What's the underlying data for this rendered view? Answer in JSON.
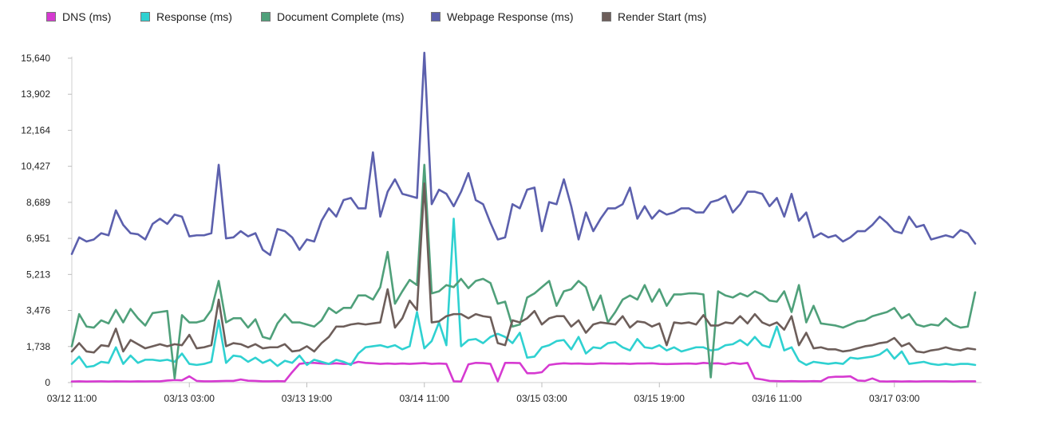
{
  "chart_data": {
    "type": "line",
    "legend_position": "top",
    "grid": false,
    "ylim": [
      0,
      15640
    ],
    "y_ticks": [
      "0",
      "1,738",
      "3,476",
      "5,213",
      "6,951",
      "8,689",
      "10,427",
      "12,164",
      "13,902",
      "15,640"
    ],
    "y_tick_values": [
      0,
      1738,
      3476,
      5213,
      6951,
      8689,
      10427,
      12164,
      13902,
      15640
    ],
    "x_tick_labels": [
      "03/12 11:00",
      "03/13 03:00",
      "03/13 19:00",
      "03/14 11:00",
      "03/15 03:00",
      "03/15 19:00",
      "03/16 11:00",
      "03/17 03:00"
    ],
    "x_tick_values": [
      0,
      16,
      32,
      48,
      64,
      80,
      96,
      112
    ],
    "x_unit": "hours since 03/12 11:00",
    "x": [
      0,
      1,
      2,
      3,
      4,
      5,
      6,
      7,
      8,
      9,
      10,
      11,
      12,
      13,
      14,
      15,
      16,
      17,
      18,
      19,
      20,
      21,
      22,
      23,
      24,
      25,
      26,
      27,
      28,
      29,
      30,
      31,
      32,
      33,
      34,
      35,
      36,
      37,
      38,
      39,
      40,
      41,
      42,
      43,
      44,
      45,
      46,
      47,
      48,
      49,
      50,
      51,
      52,
      53,
      54,
      55,
      56,
      57,
      58,
      59,
      60,
      61,
      62,
      63,
      64,
      65,
      66,
      67,
      68,
      69,
      70,
      71,
      72,
      73,
      74,
      75,
      76,
      77,
      78,
      79,
      80,
      81,
      82,
      83,
      84,
      85,
      86,
      87,
      88,
      89,
      90,
      91,
      92,
      93,
      94,
      95,
      96,
      97,
      98,
      99,
      100,
      101,
      102,
      103,
      104,
      105,
      106,
      107,
      108,
      109,
      110,
      111,
      112,
      113,
      114,
      115,
      116,
      117,
      118,
      119,
      120,
      121,
      122,
      123
    ],
    "series": [
      {
        "name": "DNS (ms)",
        "color": "#d63ad1",
        "values": [
          50,
          60,
          50,
          55,
          60,
          50,
          60,
          55,
          50,
          60,
          55,
          60,
          60,
          100,
          120,
          110,
          300,
          80,
          60,
          60,
          70,
          80,
          80,
          150,
          90,
          80,
          60,
          60,
          70,
          60,
          500,
          900,
          950,
          950,
          920,
          900,
          930,
          900,
          900,
          1000,
          950,
          930,
          900,
          920,
          900,
          920,
          900,
          920,
          940,
          900,
          920,
          900,
          60,
          50,
          880,
          950,
          940,
          900,
          60,
          950,
          950,
          940,
          450,
          450,
          500,
          850,
          900,
          930,
          910,
          920,
          900,
          900,
          930,
          920,
          910,
          920,
          900,
          920,
          920,
          930,
          900,
          890,
          900,
          910,
          920,
          900,
          950,
          920,
          930,
          880,
          950,
          900,
          950,
          200,
          150,
          80,
          70,
          60,
          70,
          60,
          60,
          70,
          60,
          250,
          280,
          280,
          300,
          100,
          80,
          200,
          60,
          50,
          60,
          50,
          60,
          50,
          60,
          60,
          60,
          60,
          50,
          60,
          60,
          60
        ]
      },
      {
        "name": "Response (ms)",
        "color": "#2fd1d1",
        "values": [
          900,
          1250,
          750,
          800,
          1000,
          950,
          1700,
          900,
          1300,
          950,
          1100,
          1100,
          1050,
          1100,
          1000,
          1400,
          900,
          850,
          900,
          1000,
          3000,
          950,
          1300,
          1250,
          1000,
          1200,
          950,
          1100,
          800,
          1050,
          950,
          1300,
          850,
          1100,
          1000,
          900,
          1100,
          1000,
          850,
          1400,
          1700,
          1750,
          1800,
          1700,
          1800,
          1600,
          1750,
          3400,
          1650,
          2000,
          2900,
          1800,
          7900,
          1750,
          2050,
          2100,
          1900,
          2200,
          2350,
          2200,
          1900,
          2400,
          1200,
          1250,
          1700,
          1800,
          2000,
          2050,
          1600,
          2200,
          1400,
          1700,
          1650,
          1900,
          1950,
          1700,
          1550,
          2100,
          1700,
          1650,
          1800,
          1550,
          1700,
          1500,
          1600,
          1700,
          1700,
          1550,
          1600,
          1800,
          1850,
          2050,
          1800,
          2200,
          1800,
          1700,
          2700,
          1550,
          1700,
          1050,
          850,
          1000,
          950,
          900,
          950,
          900,
          1200,
          1150,
          1200,
          1250,
          1350,
          1600,
          1150,
          1500,
          900,
          950,
          1000,
          900,
          850,
          900,
          850,
          900,
          900,
          850
        ]
      },
      {
        "name": "Document Complete (ms)",
        "color": "#4fa07a",
        "values": [
          1750,
          3300,
          2700,
          2650,
          3000,
          2850,
          3500,
          2900,
          3550,
          3100,
          2750,
          3350,
          3400,
          3450,
          200,
          3250,
          2900,
          2900,
          3000,
          3500,
          4900,
          2900,
          3100,
          3100,
          2650,
          3050,
          2200,
          2100,
          2850,
          3300,
          2900,
          2900,
          2800,
          2700,
          3000,
          3600,
          3350,
          3600,
          3600,
          4200,
          4200,
          4000,
          4600,
          6300,
          3800,
          4400,
          4950,
          4700,
          10500,
          4300,
          4400,
          4700,
          4600,
          5000,
          4550,
          4900,
          5000,
          4800,
          3800,
          3900,
          2700,
          2800,
          4100,
          4300,
          4600,
          4900,
          3700,
          4400,
          4500,
          4900,
          4600,
          3500,
          4200,
          2900,
          3400,
          4000,
          4200,
          4000,
          4700,
          3900,
          4500,
          3700,
          4250,
          4250,
          4300,
          4300,
          4250,
          250,
          4400,
          4200,
          4100,
          4300,
          4150,
          4400,
          4250,
          3950,
          3900,
          4400,
          3400,
          4700,
          2900,
          3700,
          2850,
          2800,
          2750,
          2650,
          2800,
          2950,
          3000,
          3200,
          3300,
          3400,
          3600,
          3100,
          3300,
          2800,
          2700,
          2800,
          2750,
          3100,
          2800,
          2650,
          2700,
          4350
        ]
      },
      {
        "name": "Webpage Response (ms)",
        "color": "#5c60ad",
        "values": [
          6200,
          7000,
          6800,
          6900,
          7200,
          7100,
          8300,
          7600,
          7200,
          7150,
          6900,
          7650,
          7900,
          7650,
          8100,
          8000,
          7050,
          7100,
          7100,
          7200,
          10500,
          6950,
          7000,
          7300,
          7050,
          7200,
          6400,
          6150,
          7400,
          7300,
          7000,
          6400,
          6900,
          6800,
          7800,
          8400,
          8000,
          8800,
          8900,
          8400,
          8400,
          11100,
          8000,
          9200,
          9800,
          9100,
          9000,
          8900,
          15900,
          8600,
          9300,
          9100,
          8500,
          9200,
          10100,
          8800,
          8600,
          7700,
          6900,
          7000,
          8600,
          8400,
          9300,
          9400,
          7300,
          8700,
          8600,
          9800,
          8500,
          6900,
          8200,
          7300,
          7900,
          8400,
          8400,
          8600,
          9400,
          7900,
          8500,
          7900,
          8300,
          8100,
          8200,
          8400,
          8400,
          8200,
          8200,
          8700,
          8800,
          9000,
          8200,
          8600,
          9200,
          9200,
          9100,
          8500,
          8900,
          8000,
          9100,
          7800,
          8200,
          7000,
          7200,
          7000,
          7100,
          6800,
          7000,
          7300,
          7300,
          7600,
          8000,
          7700,
          7300,
          7200,
          8000,
          7500,
          7600,
          6900,
          7000,
          7100,
          7000,
          7350,
          7200,
          6700
        ]
      },
      {
        "name": "Render Start (ms)",
        "color": "#6d5e5a",
        "values": [
          1500,
          1900,
          1500,
          1450,
          1800,
          1750,
          2600,
          1500,
          2050,
          1850,
          1650,
          1750,
          1850,
          1750,
          1850,
          1800,
          2300,
          1650,
          1700,
          1800,
          4000,
          1750,
          1900,
          1850,
          1700,
          1850,
          1650,
          1700,
          1700,
          1850,
          1500,
          1550,
          1750,
          1500,
          1900,
          2200,
          2700,
          2700,
          2800,
          2850,
          2800,
          2850,
          2900,
          4500,
          2650,
          3100,
          3950,
          3500,
          9600,
          2900,
          2950,
          3200,
          3300,
          3300,
          3100,
          3300,
          3200,
          3150,
          1900,
          1800,
          3000,
          2900,
          3100,
          3450,
          2800,
          3100,
          3200,
          3200,
          2700,
          3000,
          2400,
          2800,
          2900,
          2850,
          2800,
          3200,
          2650,
          2950,
          2900,
          2700,
          2850,
          1800,
          2900,
          2850,
          2900,
          2800,
          3250,
          2750,
          2750,
          2900,
          2850,
          3200,
          2850,
          3300,
          2900,
          2750,
          2900,
          2550,
          3200,
          1800,
          2400,
          1650,
          1700,
          1600,
          1600,
          1500,
          1550,
          1650,
          1750,
          1800,
          1900,
          1950,
          2150,
          1750,
          1900,
          1500,
          1450,
          1550,
          1600,
          1700,
          1600,
          1550,
          1650,
          1600
        ]
      }
    ]
  }
}
